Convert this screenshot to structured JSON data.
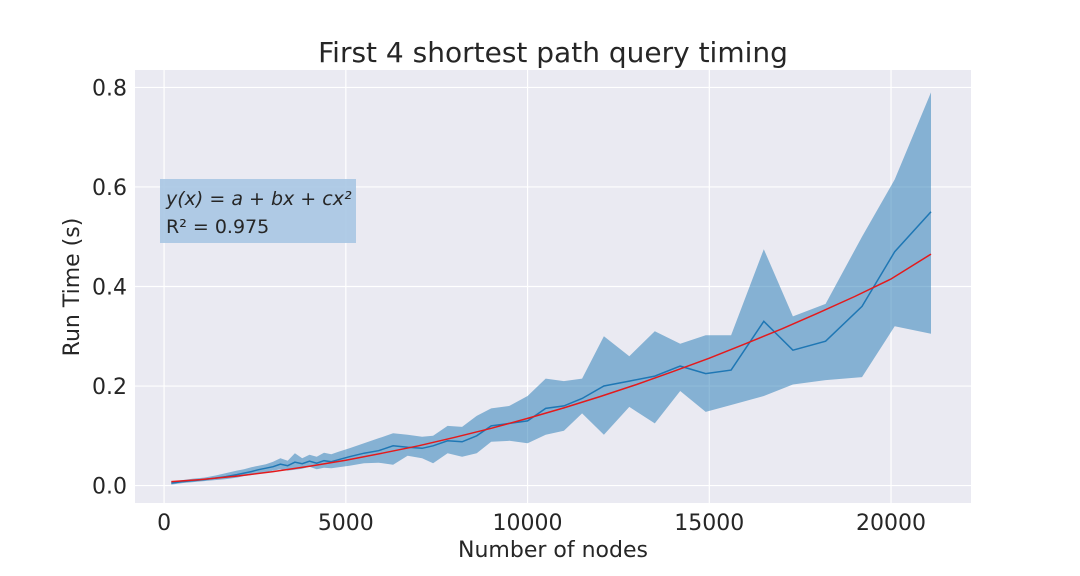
{
  "chart_data": {
    "type": "line",
    "title": "First 4 shortest path query timing",
    "xlabel": "Number of nodes",
    "ylabel": "Run Time (s)",
    "xlim": [
      -800,
      22200
    ],
    "ylim": [
      -0.035,
      0.835
    ],
    "xticks": [
      0,
      5000,
      10000,
      15000,
      20000
    ],
    "xtick_labels": [
      "0",
      "5000",
      "10000",
      "15000",
      "20000"
    ],
    "yticks": [
      0.0,
      0.2,
      0.4,
      0.6,
      0.8
    ],
    "ytick_labels": [
      "0.0",
      "0.2",
      "0.4",
      "0.6",
      "0.8"
    ],
    "grid": true,
    "annotation": {
      "equation": "y(x) = a + bx + cx²",
      "r_squared_label": "R² = 0.975"
    },
    "colors": {
      "plot_bg": "#eaeaf2",
      "grid": "#ffffff",
      "mean_line": "#1f77b4",
      "band": "#1f77b4",
      "fit_line": "#e41a1c",
      "anno_box": "#a9c6e3"
    },
    "series": [
      {
        "role": "mean",
        "x": [
          200,
          500,
          800,
          1100,
          1400,
          1700,
          2000,
          2200,
          2400,
          2600,
          2800,
          3000,
          3200,
          3400,
          3600,
          3800,
          4000,
          4200,
          4400,
          4600,
          4800,
          5100,
          5500,
          5900,
          6300,
          6700,
          7100,
          7400,
          7800,
          8200,
          8600,
          9000,
          9500,
          10000,
          10500,
          11000,
          11500,
          12100,
          12800,
          13500,
          14200,
          14900,
          15600,
          16500,
          17300,
          18200,
          19200,
          20100,
          21100
        ],
        "y": [
          0.005,
          0.008,
          0.01,
          0.012,
          0.015,
          0.018,
          0.022,
          0.025,
          0.028,
          0.032,
          0.035,
          0.038,
          0.043,
          0.04,
          0.047,
          0.044,
          0.049,
          0.045,
          0.05,
          0.048,
          0.052,
          0.058,
          0.065,
          0.07,
          0.08,
          0.077,
          0.075,
          0.08,
          0.09,
          0.088,
          0.1,
          0.12,
          0.125,
          0.13,
          0.155,
          0.16,
          0.175,
          0.2,
          0.21,
          0.22,
          0.24,
          0.225,
          0.232,
          0.33,
          0.272,
          0.29,
          0.36,
          0.47,
          0.55
        ]
      },
      {
        "role": "band_upper",
        "x": [
          200,
          500,
          800,
          1100,
          1400,
          1700,
          2000,
          2200,
          2400,
          2600,
          2800,
          3000,
          3200,
          3400,
          3600,
          3800,
          4000,
          4200,
          4400,
          4600,
          4800,
          5100,
          5500,
          5900,
          6300,
          6700,
          7100,
          7400,
          7800,
          8200,
          8600,
          9000,
          9500,
          10000,
          10500,
          11000,
          11500,
          12100,
          12800,
          13500,
          14200,
          14900,
          15600,
          16500,
          17300,
          18200,
          19200,
          20100,
          21100
        ],
        "y": [
          0.008,
          0.011,
          0.014,
          0.016,
          0.02,
          0.025,
          0.03,
          0.033,
          0.037,
          0.04,
          0.043,
          0.048,
          0.055,
          0.05,
          0.065,
          0.055,
          0.062,
          0.058,
          0.066,
          0.063,
          0.068,
          0.075,
          0.085,
          0.095,
          0.105,
          0.102,
          0.098,
          0.1,
          0.12,
          0.118,
          0.14,
          0.155,
          0.16,
          0.18,
          0.215,
          0.21,
          0.215,
          0.3,
          0.26,
          0.31,
          0.285,
          0.302,
          0.302,
          0.475,
          0.34,
          0.365,
          0.5,
          0.615,
          0.79
        ]
      },
      {
        "role": "band_lower",
        "x": [
          200,
          500,
          800,
          1100,
          1400,
          1700,
          2000,
          2200,
          2400,
          2600,
          2800,
          3000,
          3200,
          3400,
          3600,
          3800,
          4000,
          4200,
          4400,
          4600,
          4800,
          5100,
          5500,
          5900,
          6300,
          6700,
          7100,
          7400,
          7800,
          8200,
          8600,
          9000,
          9500,
          10000,
          10500,
          11000,
          11500,
          12100,
          12800,
          13500,
          14200,
          14900,
          15600,
          16500,
          17300,
          18200,
          19200,
          20100,
          21100
        ],
        "y": [
          0.002,
          0.005,
          0.007,
          0.009,
          0.011,
          0.013,
          0.016,
          0.019,
          0.021,
          0.024,
          0.027,
          0.03,
          0.033,
          0.03,
          0.032,
          0.034,
          0.038,
          0.033,
          0.036,
          0.035,
          0.037,
          0.04,
          0.045,
          0.046,
          0.042,
          0.06,
          0.055,
          0.045,
          0.065,
          0.058,
          0.065,
          0.088,
          0.09,
          0.085,
          0.102,
          0.11,
          0.145,
          0.102,
          0.158,
          0.125,
          0.19,
          0.148,
          0.162,
          0.18,
          0.203,
          0.212,
          0.218,
          0.32,
          0.305
        ]
      },
      {
        "role": "fit",
        "model": "quadratic",
        "x": [
          200,
          1000,
          2000,
          3000,
          4000,
          5000,
          6000,
          7000,
          8000,
          9000,
          10000,
          11000,
          12000,
          13000,
          14000,
          15000,
          16000,
          17000,
          18000,
          19000,
          20000,
          21100
        ],
        "y": [
          0.008,
          0.012,
          0.019,
          0.028,
          0.039,
          0.051,
          0.065,
          0.08,
          0.097,
          0.115,
          0.135,
          0.156,
          0.179,
          0.203,
          0.229,
          0.256,
          0.285,
          0.315,
          0.347,
          0.38,
          0.415,
          0.465
        ]
      }
    ]
  }
}
